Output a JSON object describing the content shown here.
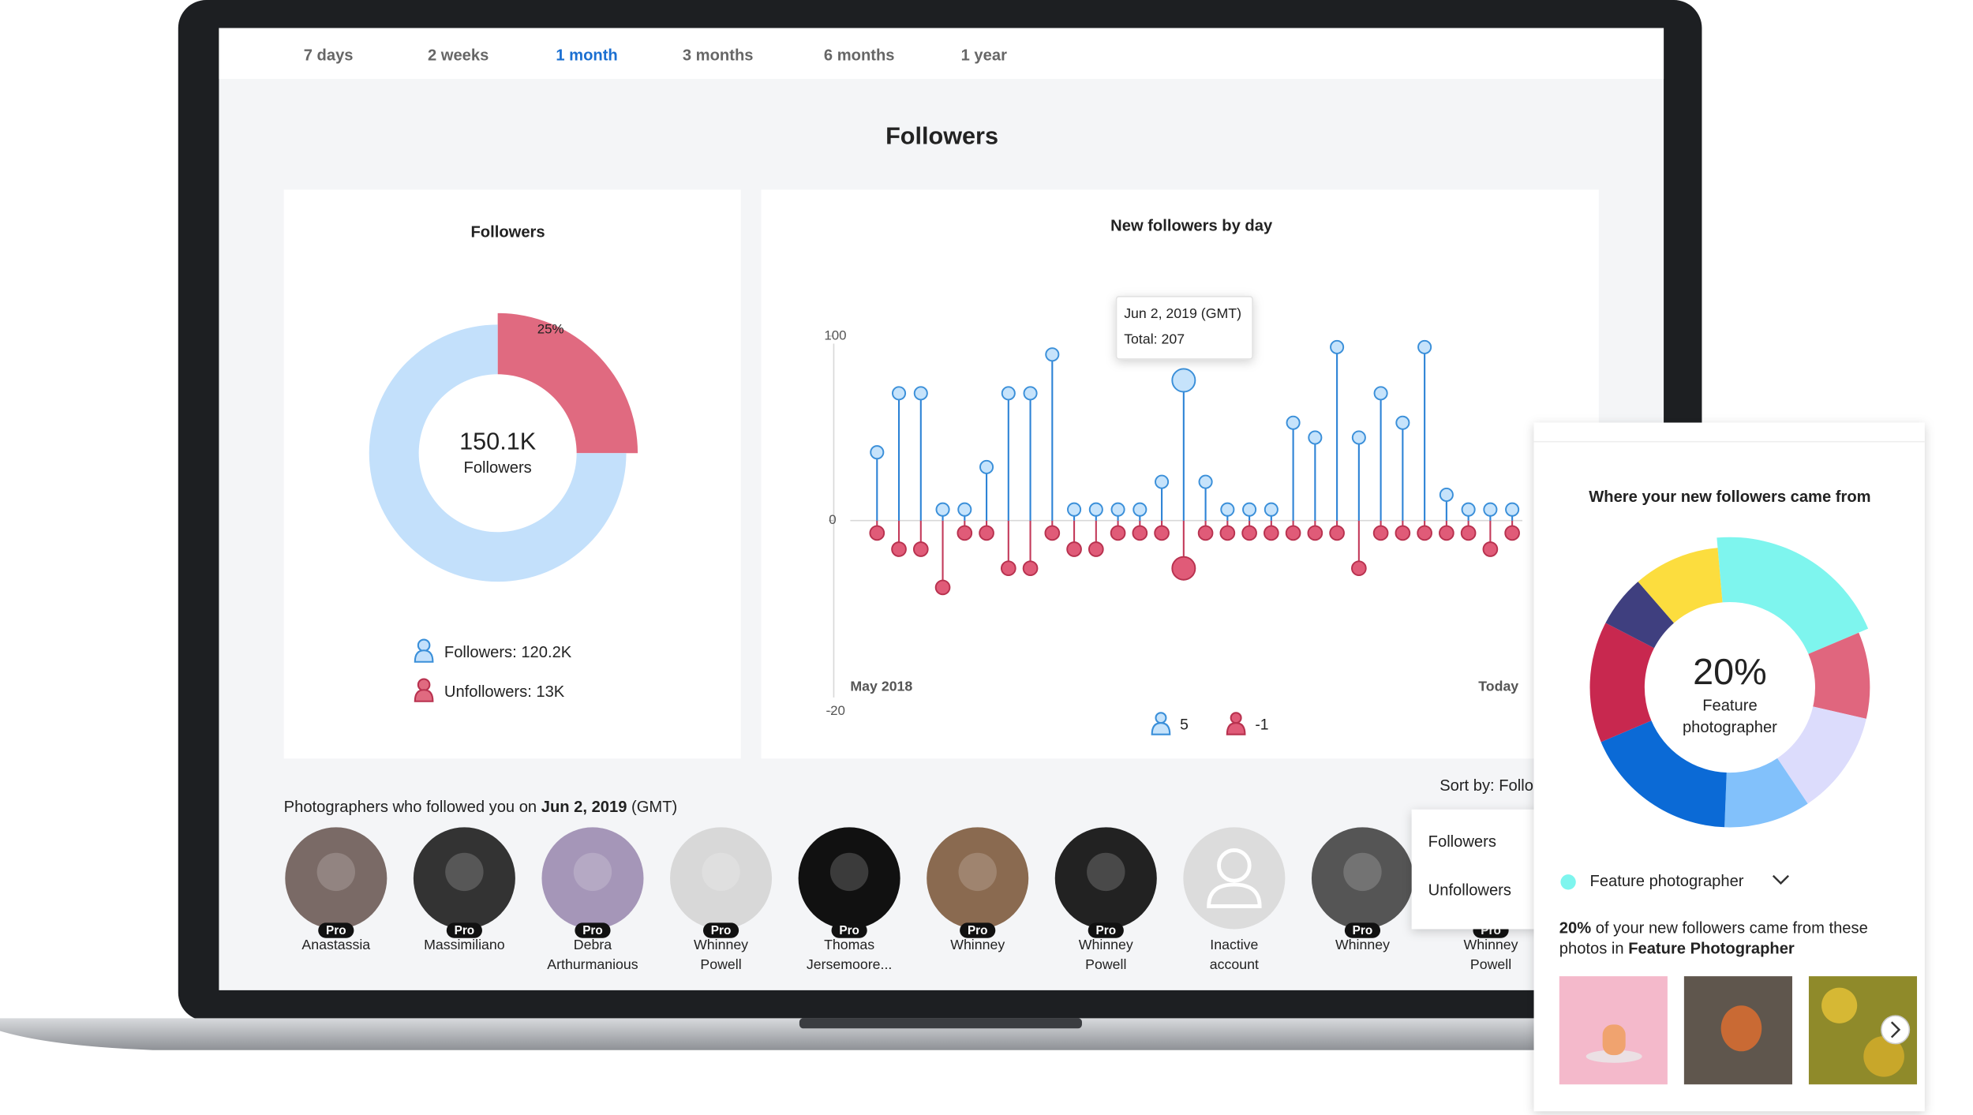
{
  "tabs": {
    "items": [
      "7 days",
      "2 weeks",
      "1 month",
      "3 months",
      "6 months",
      "1 year"
    ],
    "active": 2
  },
  "header": {
    "title": "Followers"
  },
  "followers_card": {
    "title": "Followers",
    "center_value": "150.1K",
    "center_label": "Followers",
    "segments": [
      {
        "value": 25,
        "value_label": "25%",
        "color": "#e06a80"
      },
      {
        "value": 75,
        "color": "#c3e0fb"
      }
    ],
    "legend": [
      "Followers: 120.2K",
      "Unfollowers: 13K"
    ]
  },
  "daily_chart": {
    "title": "New followers by day",
    "followers_color": "#c6e3fb",
    "unfollowers_color": "#e05b78",
    "followers": [
      37,
      69,
      69,
      6,
      6,
      29,
      69,
      69,
      90,
      6,
      6,
      6,
      6,
      21,
      76,
      21,
      6,
      6,
      6,
      53,
      45,
      94,
      45,
      69,
      53,
      94,
      14,
      6,
      6,
      6
    ],
    "unfollowers": [
      -1.3,
      -3,
      -3,
      -7,
      -1.3,
      -1.3,
      -5,
      -5,
      -1.3,
      -3,
      -3,
      -1.3,
      -1.3,
      -1.3,
      -5,
      -1.3,
      -1.3,
      -1.3,
      -1.3,
      -1.3,
      -1.3,
      -1.3,
      -5,
      -1.3,
      -1.3,
      -1.3,
      -1.3,
      -1.3,
      -3,
      -1.3
    ],
    "ylim_followers": [
      0,
      100
    ],
    "ylim_unfollowers": [
      -20,
      0
    ],
    "yticks_followers": [
      0,
      100
    ],
    "yticks_unfollowers": [
      -20
    ],
    "x_labels": [
      "May 2018",
      "Today"
    ],
    "highlight": 14,
    "tooltip": [
      "Jun 2, 2019 (GMT)",
      "Total: 207"
    ],
    "legend": [
      "5",
      "-1"
    ]
  },
  "photographers": {
    "heading": [
      "Photographers who followed you on ",
      "Jun 2, 2019",
      " (GMT)"
    ],
    "sort": "Sort by: Follo",
    "sort_options": [
      "Followers",
      "Unfollowers"
    ],
    "people": [
      {
        "name": [
          "Anastassia"
        ],
        "badge": "Pro"
      },
      {
        "name": [
          "Massimiliano"
        ],
        "badge": "Pro"
      },
      {
        "name": [
          "Debra",
          "Arthurmanious"
        ],
        "badge": "Pro"
      },
      {
        "name": [
          "Whinney",
          "Powell"
        ],
        "badge": "Pro"
      },
      {
        "name": [
          "Thomas",
          "Jersemoore..."
        ],
        "badge": "Pro"
      },
      {
        "name": [
          "Whinney"
        ],
        "badge": "Pro"
      },
      {
        "name": [
          "Whinney",
          "Powell"
        ],
        "badge": "Pro"
      },
      {
        "name": [
          "Inactive",
          "account"
        ]
      },
      {
        "name": [
          "Whinney"
        ],
        "badge": "Pro"
      },
      {
        "name": [
          "Whinney",
          "Powell"
        ],
        "badge": "Pro"
      }
    ]
  },
  "sources": {
    "title": "Where your new followers came from",
    "center_value": "20%",
    "center_label": [
      "Feature",
      "photographer"
    ],
    "segments": [
      {
        "value": 20,
        "color": "#7ef5ee"
      },
      {
        "value": 10,
        "color": "#e0667e"
      },
      {
        "value": 12,
        "color": "#dcdcfc"
      },
      {
        "value": 10,
        "color": "#82c1fb"
      },
      {
        "value": 18,
        "color": "#0b6ad6"
      },
      {
        "value": 14,
        "color": "#c8284f"
      },
      {
        "value": 6,
        "color": "#3f3f7f"
      },
      {
        "value": 10,
        "color": "#fcdd3e"
      }
    ],
    "selected": 0,
    "legend": "Feature photographer",
    "description": [
      [
        "20%",
        " of your new followers came from these"
      ],
      [
        "photos in ",
        "Feature Photographer"
      ]
    ]
  }
}
